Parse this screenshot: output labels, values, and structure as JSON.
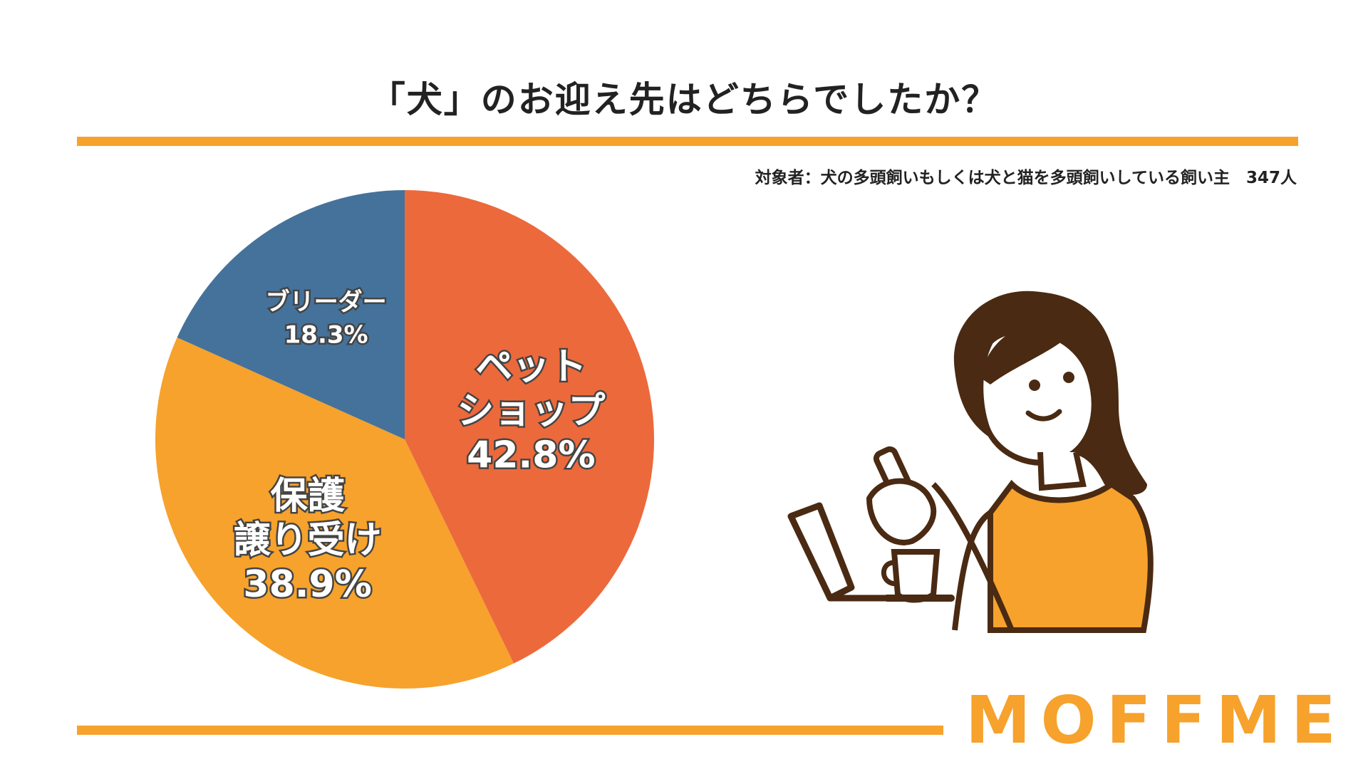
{
  "title": "「犬」のお迎え先はどちらでしたか？",
  "subtitle": "対象者：犬の多頭飼いもしくは犬と猫を多頭飼いしている飼い主　347人",
  "brand": "MOFFME",
  "colors": {
    "accent": "#F6A22C",
    "pet_shop": "#EC693C",
    "hogo": "#F6A22C",
    "breeder": "#44729B"
  },
  "chart_data": {
    "type": "pie",
    "slices": [
      {
        "name": "ペットショップ",
        "label_lines": [
          "ペット",
          "ショップ",
          "42.8%"
        ],
        "value": 42.8,
        "color": "#EC693C"
      },
      {
        "name": "保護譲り受け",
        "label_lines": [
          "保護",
          "譲り受け",
          "38.9%"
        ],
        "value": 38.9,
        "color": "#F6A22C"
      },
      {
        "name": "ブリーダー",
        "label_lines": [
          "ブリーダー",
          "18.3%"
        ],
        "value": 18.3,
        "color": "#44729B"
      }
    ]
  },
  "illustration": {
    "name": "woman-with-smartphone-and-coffee-illustration",
    "colors": {
      "outline": "#4A2A12",
      "shirt": "#F6A22C",
      "hair": "#4A2A12",
      "skin": "#ffffff"
    }
  }
}
